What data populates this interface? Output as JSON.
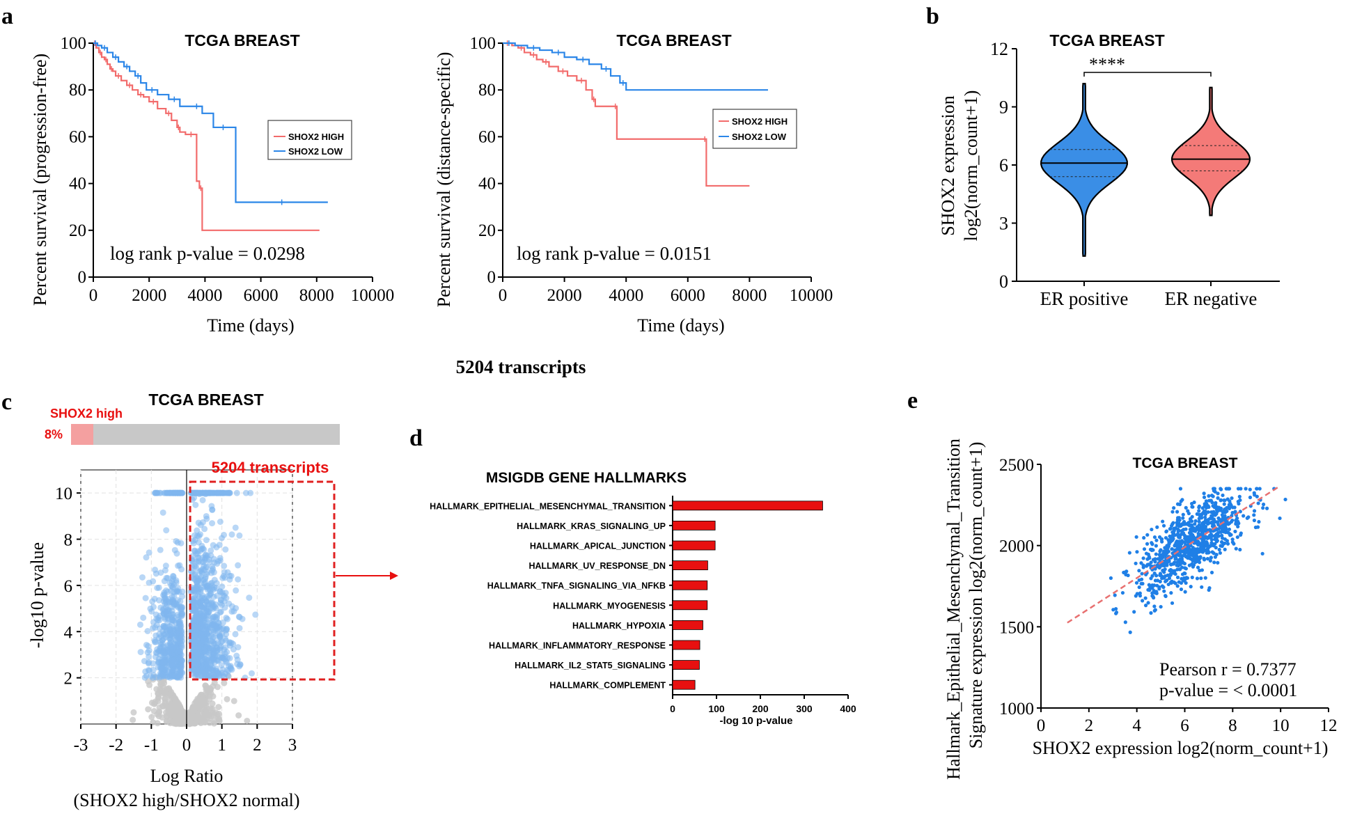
{
  "panels": {
    "a": "a",
    "b": "b",
    "c": "c",
    "d": "d",
    "e": "e"
  },
  "top_label": "5204 transcripts",
  "chart_data": [
    {
      "id": "km_pfs",
      "type": "line",
      "title": "TCGA BREAST",
      "xlabel": "Time (days)",
      "ylabel": "Percent survival (progression-free)",
      "xlim": [
        0,
        10000
      ],
      "ylim": [
        0,
        100
      ],
      "xticks": [
        0,
        2000,
        4000,
        6000,
        8000,
        10000
      ],
      "yticks": [
        0,
        20,
        40,
        60,
        80,
        100
      ],
      "annotation": "log rank p-value = 0.0298",
      "series": [
        {
          "name": "SHOX2 HIGH",
          "color": "#f26b6b",
          "x": [
            0,
            100,
            200,
            300,
            400,
            500,
            600,
            700,
            800,
            1000,
            1200,
            1400,
            1600,
            1800,
            2000,
            2300,
            2600,
            2800,
            3000,
            3100,
            3300,
            3700,
            3800,
            3900,
            8100
          ],
          "y": [
            100,
            98,
            96,
            94,
            93,
            91,
            89,
            88,
            86,
            84,
            82,
            80,
            78,
            77,
            75,
            72,
            70,
            67,
            64,
            62,
            61,
            41,
            38,
            20,
            20
          ]
        },
        {
          "name": "SHOX2 LOW",
          "color": "#2b86e8",
          "x": [
            0,
            150,
            300,
            500,
            700,
            900,
            1100,
            1300,
            1500,
            1700,
            1900,
            2300,
            2700,
            3100,
            3500,
            3900,
            4300,
            5000,
            5100,
            8400
          ],
          "y": [
            100,
            99,
            98,
            96,
            94,
            92,
            90,
            88,
            86,
            83,
            80,
            78,
            76,
            73,
            73,
            70,
            64,
            64,
            32,
            32
          ]
        }
      ]
    },
    {
      "id": "km_dss",
      "type": "line",
      "title": "TCGA BREAST",
      "xlabel": "Time (days)",
      "ylabel": "Percent survival (distance-specific)",
      "xlim": [
        0,
        10000
      ],
      "ylim": [
        0,
        100
      ],
      "xticks": [
        0,
        2000,
        4000,
        6000,
        8000,
        10000
      ],
      "yticks": [
        0,
        20,
        40,
        60,
        80,
        100
      ],
      "annotation": "log rank p-value = 0.0151",
      "series": [
        {
          "name": "SHOX2 HIGH",
          "color": "#f26b6b",
          "x": [
            0,
            300,
            500,
            700,
            900,
            1100,
            1300,
            1500,
            1800,
            2100,
            2400,
            2700,
            2900,
            3000,
            3600,
            3700,
            6500,
            6600,
            8000
          ],
          "y": [
            100,
            99,
            98,
            96,
            95,
            93,
            92,
            90,
            88,
            86,
            84,
            80,
            76,
            73,
            73,
            59,
            59,
            39,
            39
          ]
        },
        {
          "name": "SHOX2 LOW",
          "color": "#2b86e8",
          "x": [
            0,
            400,
            800,
            1200,
            1600,
            2000,
            2400,
            2800,
            3200,
            3500,
            3800,
            4000,
            8600
          ],
          "y": [
            100,
            99,
            98,
            97,
            96,
            94,
            93,
            91,
            89,
            86,
            83,
            80,
            80
          ]
        }
      ]
    },
    {
      "id": "violin",
      "type": "violin",
      "title": "TCGA BREAST",
      "xlabel": "",
      "ylabel_line1": "SHOX2 expression",
      "ylabel_line2": "log2(norm_count+1)",
      "categories": [
        "ER positive",
        "ER negative"
      ],
      "ylim": [
        0,
        12
      ],
      "yticks": [
        0,
        3,
        6,
        9,
        12
      ],
      "significance": "****",
      "groups": [
        {
          "name": "ER positive",
          "color": "#3a8ee6",
          "min": 1.3,
          "q1": 5.4,
          "median": 6.1,
          "q3": 6.8,
          "max": 10.2
        },
        {
          "name": "ER negative",
          "color": "#f47a78",
          "min": 3.4,
          "q1": 5.7,
          "median": 6.3,
          "q3": 7.0,
          "max": 10.0
        }
      ]
    },
    {
      "id": "volcano",
      "type": "scatter",
      "title": "TCGA BREAST",
      "xlabel": "Log Ratio",
      "xlabel2": "(SHOX2 high/SHOX2 normal)",
      "ylabel": "-log10 p-value",
      "xlim": [
        -3,
        3
      ],
      "ylim": [
        0,
        11
      ],
      "xticks": [
        -3,
        -2,
        -1,
        0,
        1,
        2,
        3
      ],
      "yticks": [
        2,
        4,
        6,
        8,
        10
      ],
      "bar_label": "SHOX2  high",
      "bar_percent": "8%",
      "box_label": "5204 transcripts",
      "colors": {
        "significant": "#7fb6ee",
        "nonsignificant": "#c8c8c8",
        "highlight": "#e02020"
      }
    },
    {
      "id": "hallmarks",
      "type": "bar",
      "orientation": "horizontal",
      "title": "MSIGDB GENE HALLMARKS",
      "xlabel": "-log 10 p-value",
      "xlim": [
        0,
        400
      ],
      "xticks": [
        0,
        100,
        200,
        300,
        400
      ],
      "color": "#e81010",
      "categories": [
        "HALLMARK_EPITHELIAL_MESENCHYMAL_TRANSITION",
        "HALLMARK_KRAS_SIGNALING_UP",
        "HALLMARK_APICAL_JUNCTION",
        "HALLMARK_UV_RESPONSE_DN",
        "HALLMARK_TNFA_SIGNALING_VIA_NFKB",
        "HALLMARK_MYOGENESIS",
        "HALLMARK_HYPOXIA",
        "HALLMARK_INFLAMMATORY_RESPONSE",
        "HALLMARK_IL2_STAT5_SIGNALING",
        "HALLMARK_COMPLEMENT"
      ],
      "values": [
        342,
        97,
        97,
        80,
        79,
        79,
        69,
        62,
        61,
        51
      ]
    },
    {
      "id": "correlation",
      "type": "scatter",
      "title": "TCGA BREAST",
      "xlabel": "SHOX2 expression log2(norm_count+1)",
      "ylabel_line1": "Hallmark_Epithelial_Mesenchymal_Transition",
      "ylabel_line2": "Signature expression log2(norm_count+1)",
      "xlim": [
        0,
        12
      ],
      "ylim": [
        1000,
        2500
      ],
      "xticks": [
        0,
        2,
        4,
        6,
        8,
        10,
        12
      ],
      "yticks": [
        1000,
        1500,
        2000,
        2500
      ],
      "color": "#1f7fe6",
      "fit_color": "#e87070",
      "fit_line": {
        "x": [
          1.1,
          9.9
        ],
        "y": [
          1525,
          2360
        ]
      },
      "stat1": "Pearson r = 0.7377",
      "stat2": "p-value = < 0.0001"
    }
  ]
}
